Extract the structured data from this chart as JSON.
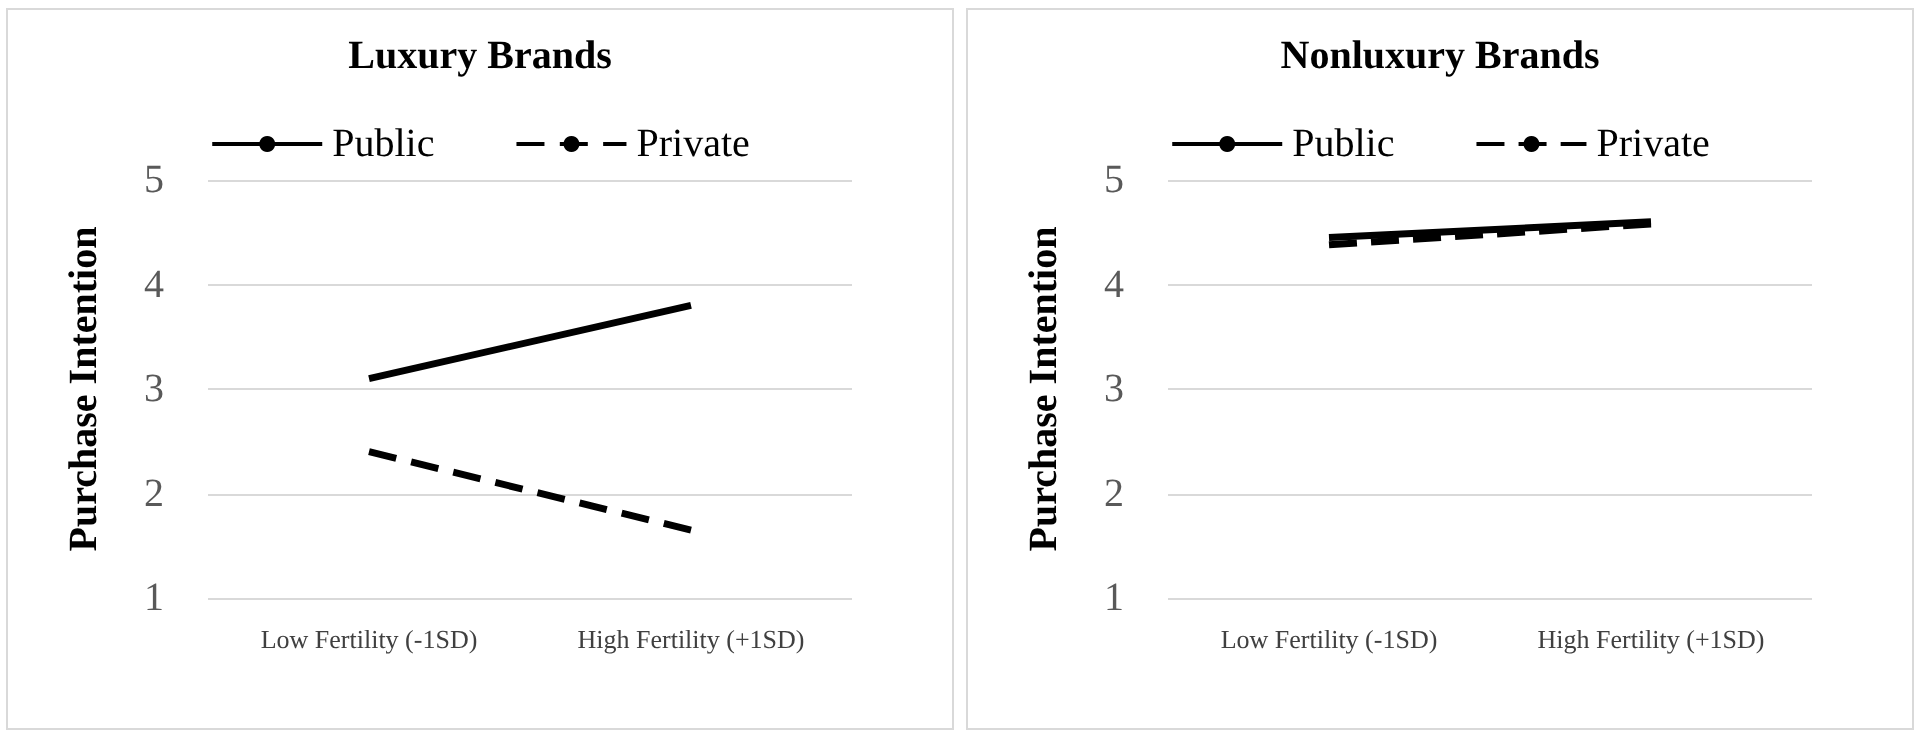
{
  "chart_data": [
    {
      "type": "line",
      "title": "Luxury Brands",
      "ylabel": "Purchase Intention",
      "categories": [
        "Low Fertility (-1SD)",
        "High Fertility (+1SD)"
      ],
      "series": [
        {
          "name": "Public",
          "color": "#000000",
          "values": [
            3.1,
            3.8
          ],
          "line_style": "solid"
        },
        {
          "name": "Private",
          "color": "#000000",
          "values": [
            2.4,
            1.65
          ],
          "line_style": "dashed"
        }
      ],
      "ylim": [
        1,
        5
      ],
      "yticks": [
        1,
        2,
        3,
        4,
        5
      ],
      "grid": "y",
      "legend": "top",
      "marker": "none"
    },
    {
      "type": "line",
      "title": "Nonluxury Brands",
      "ylabel": "Purchase Intention",
      "categories": [
        "Low Fertility (-1SD)",
        "High Fertility (+1SD)"
      ],
      "series": [
        {
          "name": "Public",
          "color": "#000000",
          "values": [
            4.45,
            4.6
          ],
          "line_style": "solid"
        },
        {
          "name": "Private",
          "color": "#000000",
          "values": [
            4.38,
            4.58
          ],
          "line_style": "dashed"
        }
      ],
      "ylim": [
        1,
        5
      ],
      "yticks": [
        1,
        2,
        3,
        4,
        5
      ],
      "grid": "y",
      "legend": "top",
      "marker": "none"
    }
  ]
}
